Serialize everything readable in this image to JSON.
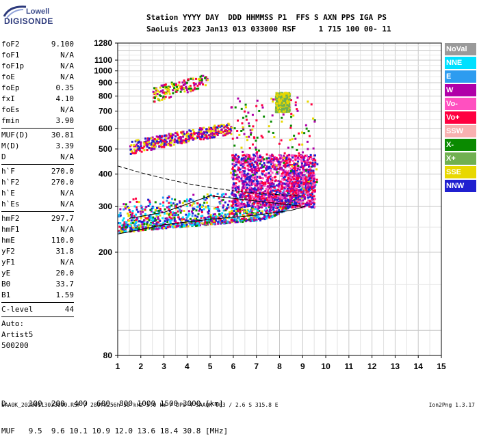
{
  "logo": {
    "line1": "Lowell",
    "line2": "DIGISONDE"
  },
  "header": {
    "line1": "Station YYYY DAY  DDD HHMMSS P1  FFS S AXN PPS IGA PS",
    "line2": "SaoLuis 2023 Jan13 013 033000 RSF     1 715 100 00- 11"
  },
  "params": [
    {
      "k": "foF2",
      "v": "9.100"
    },
    {
      "k": "foF1",
      "v": "N/A"
    },
    {
      "k": "foF1p",
      "v": "N/A"
    },
    {
      "k": "foE",
      "v": "N/A"
    },
    {
      "k": "foEp",
      "v": "0.35"
    },
    {
      "k": "fxI",
      "v": "4.10"
    },
    {
      "k": "foEs",
      "v": "N/A"
    },
    {
      "k": "fmin",
      "v": "3.90"
    },
    {
      "k": "MUF(D)",
      "v": "30.81"
    },
    {
      "k": "M(D)",
      "v": "3.39"
    },
    {
      "k": "D",
      "v": "N/A"
    },
    {
      "k": "h`F",
      "v": "270.0"
    },
    {
      "k": "h`F2",
      "v": "270.0"
    },
    {
      "k": "h`E",
      "v": "N/A"
    },
    {
      "k": "h`Es",
      "v": "N/A"
    },
    {
      "k": "hmF2",
      "v": "297.7"
    },
    {
      "k": "hmF1",
      "v": "N/A"
    },
    {
      "k": "hmE",
      "v": "110.0"
    },
    {
      "k": "yF2",
      "v": "31.8"
    },
    {
      "k": "yF1",
      "v": "N/A"
    },
    {
      "k": "yE",
      "v": "20.0"
    },
    {
      "k": "B0",
      "v": "33.7"
    },
    {
      "k": "B1",
      "v": "1.59"
    },
    {
      "k": "C-level",
      "v": "44"
    }
  ],
  "auto": {
    "label": "Auto:",
    "artist": "Artist5",
    "code": "500200"
  },
  "legend": [
    {
      "label": "NoVal",
      "color": "#9a9a9a"
    },
    {
      "label": "NNE",
      "color": "#00e0ff"
    },
    {
      "label": "E",
      "color": "#2d9cf0"
    },
    {
      "label": "W",
      "color": "#b000a8"
    },
    {
      "label": "Vo-",
      "color": "#ff50c0"
    },
    {
      "label": "Vo+",
      "color": "#ff0040"
    },
    {
      "label": "SSW",
      "color": "#f8b0b0"
    },
    {
      "label": "X-",
      "color": "#0a8a00"
    },
    {
      "label": "X+",
      "color": "#70b050"
    },
    {
      "label": "SSE",
      "color": "#e8d800"
    },
    {
      "label": "NNW",
      "color": "#2020d0"
    }
  ],
  "bottom": {
    "row1": "D     100  200  400  600  800 1000 1500 3000 [km]",
    "row2": "MUF   9.5  9.6 10.1 10.9 12.0 13.6 18.4 30.8 [MHz]"
  },
  "footer": "SAA0K_20230113033000.RSF / 280fx256h 50 kHz 5.0 km / DPS-4 SAA0K 903 / 2.6 S 315.8 E",
  "version": "Ion2Png 1.3.17",
  "chart_data": {
    "type": "scatter",
    "title": "",
    "xlabel": "",
    "ylabel": "",
    "xlim": [
      1,
      15
    ],
    "ylim": [
      80,
      1280
    ],
    "x_ticks": [
      1,
      2,
      3,
      4,
      5,
      6,
      7,
      8,
      9,
      10,
      11,
      12,
      13,
      14,
      15
    ],
    "y_ticks": [
      80,
      200,
      300,
      400,
      500,
      600,
      700,
      800,
      900,
      1000,
      1100,
      1280
    ],
    "y_scale": "log",
    "grid": true,
    "regions": [
      {
        "name": "F-trace",
        "x": [
          1.0,
          9.6
        ],
        "y": [
          240,
          460
        ],
        "density": "high",
        "colors": [
          "NNW",
          "Vo+",
          "W",
          "X-",
          "SSE",
          "E",
          "NNE"
        ]
      },
      {
        "name": "F-upper-cloud",
        "x": [
          5.9,
          9.5
        ],
        "y": [
          300,
          480
        ],
        "density": "high",
        "colors": [
          "Vo-",
          "W",
          "Vo+",
          "NNW"
        ]
      },
      {
        "name": "second-hop",
        "x": [
          1.5,
          5.9
        ],
        "y": [
          480,
          600
        ],
        "density": "medium",
        "colors": [
          "NNW",
          "W",
          "Vo+",
          "SSE"
        ]
      },
      {
        "name": "third-hop",
        "x": [
          2.5,
          4.9
        ],
        "y": [
          760,
          950
        ],
        "density": "low",
        "colors": [
          "W",
          "X-",
          "SSE",
          "Vo+"
        ]
      },
      {
        "name": "vertical-streaks",
        "x": [
          5.8,
          9.5
        ],
        "y": [
          400,
          800
        ],
        "density": "low",
        "colors": [
          "SSE",
          "W",
          "X-",
          "Vo+"
        ]
      },
      {
        "name": "SSE-blob",
        "x": [
          7.8,
          8.4
        ],
        "y": [
          700,
          830
        ],
        "density": "medium",
        "colors": [
          "SSE",
          "X+"
        ]
      }
    ],
    "traces": [
      {
        "name": "fitted-trace-solid",
        "style": "solid",
        "points": [
          [
            1.0,
            235
          ],
          [
            3.0,
            255
          ],
          [
            5.0,
            268
          ],
          [
            7.0,
            278
          ],
          [
            8.5,
            290
          ],
          [
            9.1,
            300
          ],
          [
            5.0,
            330
          ],
          [
            3.0,
            285
          ],
          [
            1.5,
            270
          ]
        ]
      },
      {
        "name": "fitted-trace-dashed",
        "style": "dashed",
        "points": [
          [
            1.0,
            430
          ],
          [
            2.0,
            405
          ],
          [
            3.0,
            385
          ],
          [
            4.0,
            368
          ],
          [
            5.0,
            355
          ],
          [
            6.0,
            345
          ],
          [
            7.0,
            338
          ],
          [
            8.0,
            333
          ],
          [
            9.0,
            330
          ]
        ]
      }
    ]
  }
}
